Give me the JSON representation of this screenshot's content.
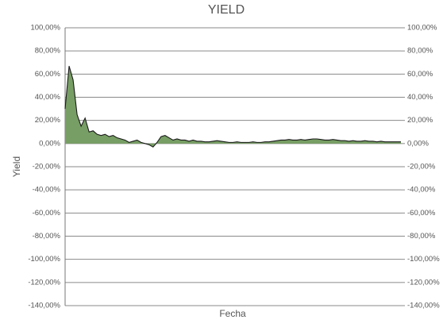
{
  "chart_data": {
    "type": "area",
    "title": "YIELD",
    "xlabel": "Fecha",
    "ylabel": "Yield",
    "color": "#779e64",
    "line_color": "#1a1a1a",
    "grid": true,
    "values": [
      30,
      67,
      55,
      25,
      15,
      22,
      10,
      11,
      8,
      7,
      8,
      6,
      7,
      5,
      4,
      3,
      1,
      2,
      3,
      1,
      0,
      -1,
      -3,
      1,
      6,
      7,
      5,
      3,
      4,
      3,
      3,
      2,
      3,
      2,
      2,
      1.5,
      1.5,
      2,
      2.5,
      2,
      1.5,
      1,
      1,
      1.5,
      1,
      1,
      1,
      1.5,
      1,
      1,
      1.5,
      1.5,
      2,
      2.5,
      3,
      3,
      3.5,
      3,
      3,
      3.5,
      3,
      3.5,
      4,
      4,
      3.5,
      3,
      3,
      3.5,
      3,
      2.5,
      2.5,
      2,
      2.5,
      2,
      2,
      2.5,
      2,
      2,
      1.5,
      2,
      1.5,
      1.5,
      1.5,
      1.5,
      1.5
    ],
    "ylim": [
      -140,
      100
    ],
    "yticks": [
      {
        "value": 100,
        "label": "100,00%"
      },
      {
        "value": 80,
        "label": "80,00%"
      },
      {
        "value": 60,
        "label": "60,00%"
      },
      {
        "value": 40,
        "label": "40,00%"
      },
      {
        "value": 20,
        "label": "20,00%"
      },
      {
        "value": 0,
        "label": "0,00%"
      },
      {
        "value": -20,
        "label": "-20,00%"
      },
      {
        "value": -40,
        "label": "-40,00%"
      },
      {
        "value": -60,
        "label": "-60,00%"
      },
      {
        "value": -80,
        "label": "-80,00%"
      },
      {
        "value": -100,
        "label": "-100,00%"
      },
      {
        "value": -120,
        "label": "-120,00%"
      },
      {
        "value": -140,
        "label": "-140,00%"
      }
    ],
    "y2lim": [
      -140,
      100
    ],
    "y2ticks": [
      {
        "value": 100,
        "label": "100,00%"
      },
      {
        "value": 80,
        "label": "80,00%"
      },
      {
        "value": 60,
        "label": "60,00%"
      },
      {
        "value": 40,
        "label": "40,00%"
      },
      {
        "value": 20,
        "label": "20,00%"
      },
      {
        "value": 0,
        "label": "0,00%"
      },
      {
        "value": -20,
        "label": "-20,00%"
      },
      {
        "value": -40,
        "label": "-40,00%"
      },
      {
        "value": -60,
        "label": "-60,00%"
      },
      {
        "value": -80,
        "label": "-80,00%"
      },
      {
        "value": -100,
        "label": "-100,00%"
      },
      {
        "value": -120,
        "label": "-120,00%"
      },
      {
        "value": -140,
        "label": "-140,00%"
      }
    ]
  }
}
